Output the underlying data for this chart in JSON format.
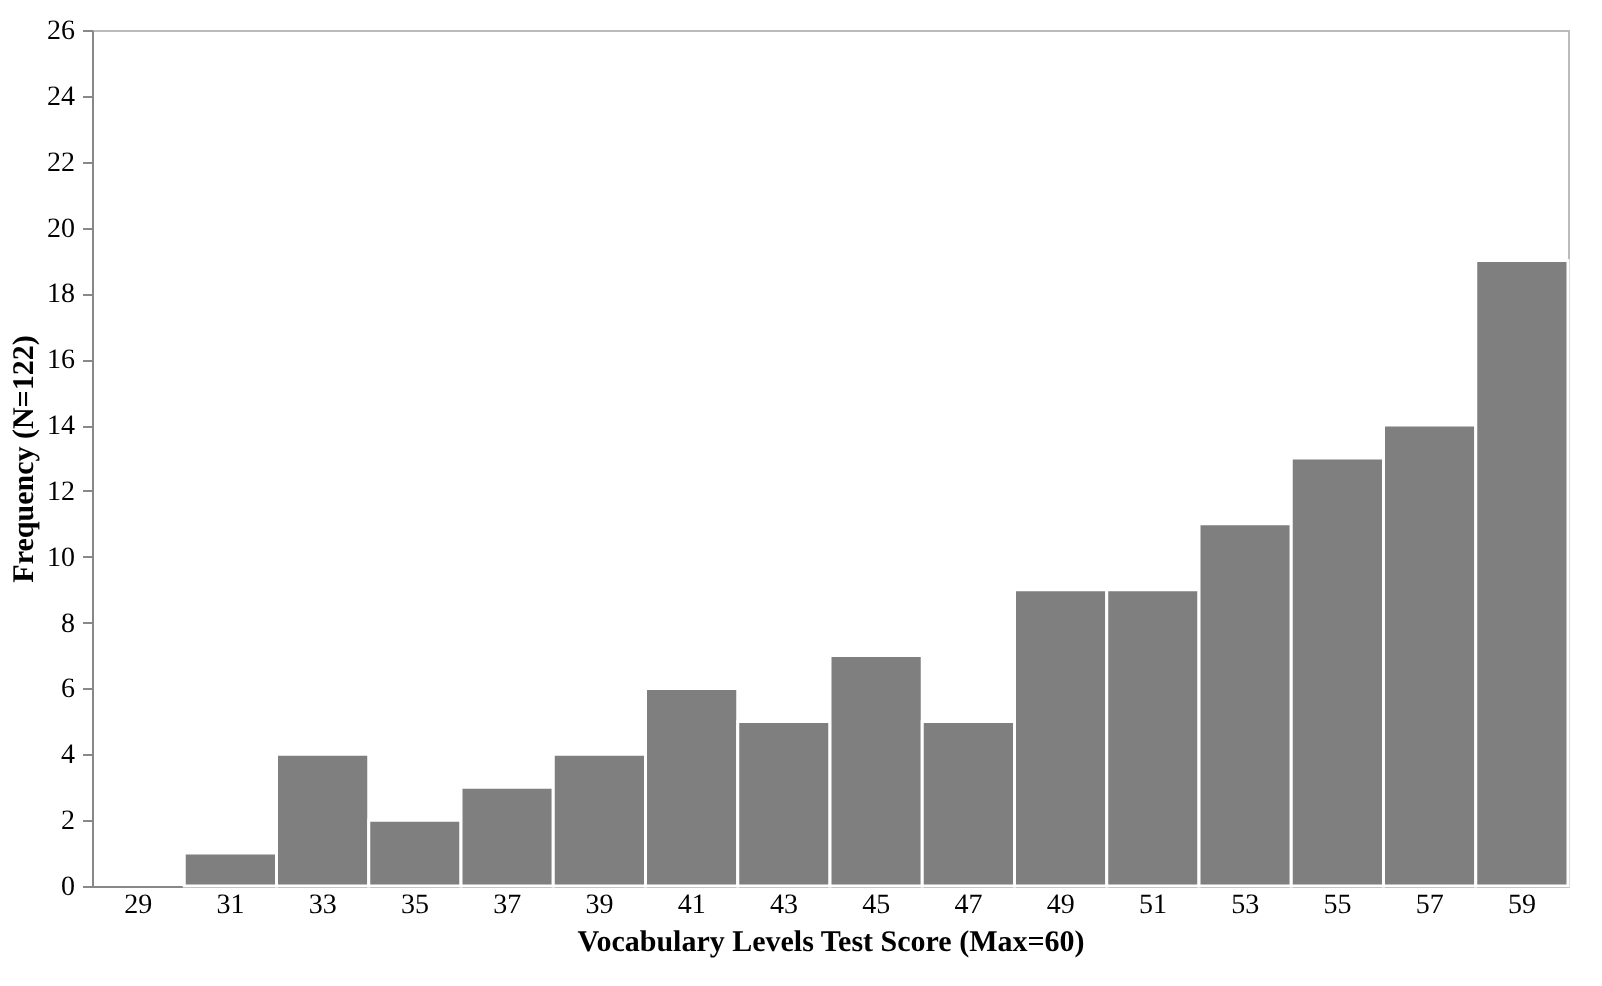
{
  "chart_data": {
    "type": "bar",
    "xlabel": "Vocabulary Levels Test Score (Max=60)",
    "ylabel": "Frequency (N=122)",
    "categories": [
      "29",
      "31",
      "33",
      "35",
      "37",
      "39",
      "41",
      "43",
      "45",
      "47",
      "49",
      "51",
      "53",
      "55",
      "57",
      "59"
    ],
    "values": [
      0,
      1,
      4,
      2,
      3,
      4,
      6,
      5,
      7,
      5,
      9,
      9,
      11,
      13,
      14,
      19
    ],
    "color": "#7f7f7f",
    "ylim": [
      0,
      26
    ],
    "yticks": [
      0,
      2,
      4,
      6,
      8,
      10,
      12,
      14,
      16,
      18,
      20,
      22,
      24,
      26
    ],
    "grid": false
  }
}
